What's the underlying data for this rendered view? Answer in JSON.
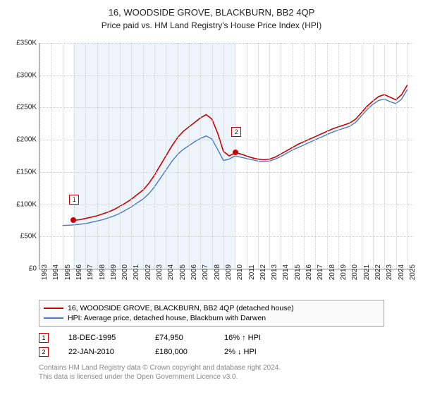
{
  "title": "16, WOODSIDE GROVE, BLACKBURN, BB2 4QP",
  "subtitle": "Price paid vs. HM Land Registry's House Price Index (HPI)",
  "chart": {
    "type": "line",
    "background_color": "#ffffff",
    "grid_color": "#cccccc",
    "shade_color": "#eef4fc",
    "x_min": 1993,
    "x_max": 2025.5,
    "x_ticks": [
      1993,
      1994,
      1995,
      1996,
      1997,
      1998,
      1999,
      2000,
      2001,
      2002,
      2003,
      2004,
      2005,
      2006,
      2007,
      2008,
      2009,
      2010,
      2011,
      2012,
      2013,
      2014,
      2015,
      2016,
      2017,
      2018,
      2019,
      2020,
      2021,
      2022,
      2023,
      2024,
      2025
    ],
    "y_min": 0,
    "y_max": 350000,
    "y_ticks": [
      0,
      50000,
      100000,
      150000,
      200000,
      250000,
      300000,
      350000
    ],
    "y_tick_labels": [
      "£0",
      "£50K",
      "£100K",
      "£150K",
      "£200K",
      "£250K",
      "£300K",
      "£350K"
    ],
    "shade_ranges": [
      [
        1995.96,
        2010.06
      ]
    ],
    "series": [
      {
        "name": "16, WOODSIDE GROVE, BLACKBURN, BB2 4QP (detached house)",
        "color": "#cc0000",
        "width": 1.6,
        "points": [
          [
            1995.96,
            74950
          ],
          [
            1996.5,
            76000
          ],
          [
            1997,
            78000
          ],
          [
            1997.5,
            80000
          ],
          [
            1998,
            82000
          ],
          [
            1998.5,
            85000
          ],
          [
            1999,
            88000
          ],
          [
            1999.5,
            92000
          ],
          [
            2000,
            97000
          ],
          [
            2000.5,
            102000
          ],
          [
            2001,
            108000
          ],
          [
            2001.5,
            115000
          ],
          [
            2002,
            122000
          ],
          [
            2002.5,
            132000
          ],
          [
            2003,
            145000
          ],
          [
            2003.5,
            160000
          ],
          [
            2004,
            175000
          ],
          [
            2004.5,
            190000
          ],
          [
            2005,
            203000
          ],
          [
            2005.5,
            213000
          ],
          [
            2006,
            220000
          ],
          [
            2006.5,
            227000
          ],
          [
            2007,
            234000
          ],
          [
            2007.5,
            239000
          ],
          [
            2008,
            232000
          ],
          [
            2008.5,
            210000
          ],
          [
            2009,
            182000
          ],
          [
            2009.5,
            175000
          ],
          [
            2010.06,
            180000
          ],
          [
            2010.5,
            178000
          ],
          [
            2011,
            175000
          ],
          [
            2011.5,
            172000
          ],
          [
            2012,
            170000
          ],
          [
            2012.5,
            169000
          ],
          [
            2013,
            170000
          ],
          [
            2013.5,
            173000
          ],
          [
            2014,
            178000
          ],
          [
            2014.5,
            183000
          ],
          [
            2015,
            188000
          ],
          [
            2015.5,
            193000
          ],
          [
            2016,
            197000
          ],
          [
            2016.5,
            201000
          ],
          [
            2017,
            205000
          ],
          [
            2017.5,
            209000
          ],
          [
            2018,
            213000
          ],
          [
            2018.5,
            217000
          ],
          [
            2019,
            220000
          ],
          [
            2019.5,
            223000
          ],
          [
            2020,
            226000
          ],
          [
            2020.5,
            232000
          ],
          [
            2021,
            242000
          ],
          [
            2021.5,
            252000
          ],
          [
            2022,
            260000
          ],
          [
            2022.5,
            267000
          ],
          [
            2023,
            270000
          ],
          [
            2023.5,
            266000
          ],
          [
            2024,
            262000
          ],
          [
            2024.5,
            270000
          ],
          [
            2025,
            285000
          ]
        ]
      },
      {
        "name": "HPI: Average price, detached house, Blackburn with Darwen",
        "color": "#4a78c4",
        "width": 1.4,
        "points": [
          [
            1995,
            67000
          ],
          [
            1995.5,
            67500
          ],
          [
            1996,
            68000
          ],
          [
            1996.5,
            69000
          ],
          [
            1997,
            70000
          ],
          [
            1997.5,
            72000
          ],
          [
            1998,
            74000
          ],
          [
            1998.5,
            76000
          ],
          [
            1999,
            79000
          ],
          [
            1999.5,
            82000
          ],
          [
            2000,
            86000
          ],
          [
            2000.5,
            91000
          ],
          [
            2001,
            96000
          ],
          [
            2001.5,
            102000
          ],
          [
            2002,
            108000
          ],
          [
            2002.5,
            116000
          ],
          [
            2003,
            127000
          ],
          [
            2003.5,
            140000
          ],
          [
            2004,
            153000
          ],
          [
            2004.5,
            166000
          ],
          [
            2005,
            177000
          ],
          [
            2005.5,
            185000
          ],
          [
            2006,
            191000
          ],
          [
            2006.5,
            197000
          ],
          [
            2007,
            202000
          ],
          [
            2007.5,
            206000
          ],
          [
            2008,
            201000
          ],
          [
            2008.5,
            185000
          ],
          [
            2009,
            168000
          ],
          [
            2009.5,
            170000
          ],
          [
            2010,
            175000
          ],
          [
            2010.5,
            173000
          ],
          [
            2011,
            171000
          ],
          [
            2011.5,
            169000
          ],
          [
            2012,
            167000
          ],
          [
            2012.5,
            166000
          ],
          [
            2013,
            167000
          ],
          [
            2013.5,
            170000
          ],
          [
            2014,
            174000
          ],
          [
            2014.5,
            179000
          ],
          [
            2015,
            184000
          ],
          [
            2015.5,
            188000
          ],
          [
            2016,
            192000
          ],
          [
            2016.5,
            196000
          ],
          [
            2017,
            200000
          ],
          [
            2017.5,
            204000
          ],
          [
            2018,
            208000
          ],
          [
            2018.5,
            212000
          ],
          [
            2019,
            215000
          ],
          [
            2019.5,
            218000
          ],
          [
            2020,
            221000
          ],
          [
            2020.5,
            227000
          ],
          [
            2021,
            237000
          ],
          [
            2021.5,
            247000
          ],
          [
            2022,
            255000
          ],
          [
            2022.5,
            261000
          ],
          [
            2023,
            263000
          ],
          [
            2023.5,
            259000
          ],
          [
            2024,
            256000
          ],
          [
            2024.5,
            263000
          ],
          [
            2025,
            278000
          ]
        ]
      }
    ],
    "markers": [
      {
        "num": "1",
        "year": 1995.96,
        "price": 74950,
        "color": "#cc0000"
      },
      {
        "num": "2",
        "year": 2010.06,
        "price": 180000,
        "color": "#cc0000"
      }
    ]
  },
  "legend": {
    "items": [
      {
        "label": "16, WOODSIDE GROVE, BLACKBURN, BB2 4QP (detached house)",
        "color": "#cc0000"
      },
      {
        "label": "HPI: Average price, detached house, Blackburn with Darwen",
        "color": "#4a78c4"
      }
    ]
  },
  "annotations": [
    {
      "num": "1",
      "color": "#cc0000",
      "date": "18-DEC-1995",
      "price": "£74,950",
      "delta": "16% ↑ HPI"
    },
    {
      "num": "2",
      "color": "#cc0000",
      "date": "22-JAN-2010",
      "price": "£180,000",
      "delta": "2% ↓ HPI"
    }
  ],
  "footer_line1": "Contains HM Land Registry data © Crown copyright and database right 2024.",
  "footer_line2": "This data is licensed under the Open Government Licence v3.0."
}
